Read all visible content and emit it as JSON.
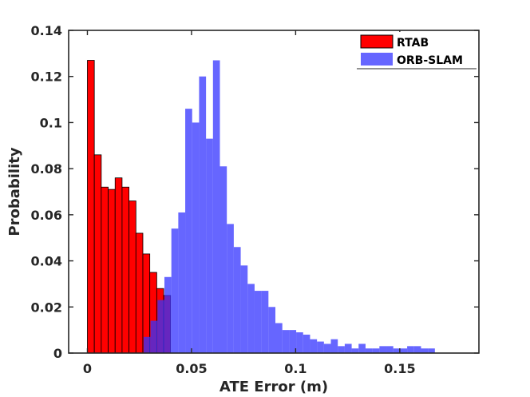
{
  "chart_data": {
    "type": "bar",
    "subtype": "overlapping-histogram",
    "title": "",
    "xlabel": "ATE Error (m)",
    "ylabel": "Probability",
    "xlim": [
      -0.009,
      0.188
    ],
    "ylim": [
      0,
      0.14
    ],
    "xticks": [
      0,
      0.05,
      0.1,
      0.15
    ],
    "xtick_labels": [
      "0",
      "0.05",
      "0.1",
      "0.15"
    ],
    "yticks": [
      0,
      0.02,
      0.04,
      0.06,
      0.08,
      0.1,
      0.12,
      0.14
    ],
    "ytick_labels": [
      "0",
      "0.02",
      "0.04",
      "0.06",
      "0.08",
      "0.1",
      "0.12",
      "0.14"
    ],
    "grid": false,
    "legend_position": "top-right",
    "series": [
      {
        "name": "RTAB",
        "color": "#ff0000",
        "edge_color": "#000000",
        "opacity": 1.0,
        "bin_start": 0.0,
        "bin_width": 0.00333,
        "values": [
          0.127,
          0.086,
          0.072,
          0.071,
          0.076,
          0.072,
          0.066,
          0.052,
          0.043,
          0.035,
          0.028,
          0.025,
          0.0,
          0.0,
          0.0,
          0.0,
          0.0,
          0.0,
          0.0,
          0.0,
          0.0,
          0.0,
          0.0,
          0.0,
          0.0,
          0.0,
          0.0,
          0.0,
          0.0,
          0.0,
          0.0,
          0.0,
          0.0
        ]
      },
      {
        "name": "ORB-SLAM",
        "color": "#3333ff",
        "opacity": 0.75,
        "bin_start": 0.027,
        "bin_width": 0.00333,
        "values": [
          0.007,
          0.014,
          0.023,
          0.033,
          0.054,
          0.061,
          0.106,
          0.1,
          0.12,
          0.093,
          0.127,
          0.081,
          0.056,
          0.046,
          0.038,
          0.03,
          0.027,
          0.027,
          0.02,
          0.013,
          0.01,
          0.01,
          0.009,
          0.008,
          0.006,
          0.005,
          0.004,
          0.006,
          0.003,
          0.004,
          0.002,
          0.004,
          0.002,
          0.002,
          0.003,
          0.003,
          0.002,
          0.002,
          0.003,
          0.003,
          0.002,
          0.002
        ]
      }
    ]
  }
}
